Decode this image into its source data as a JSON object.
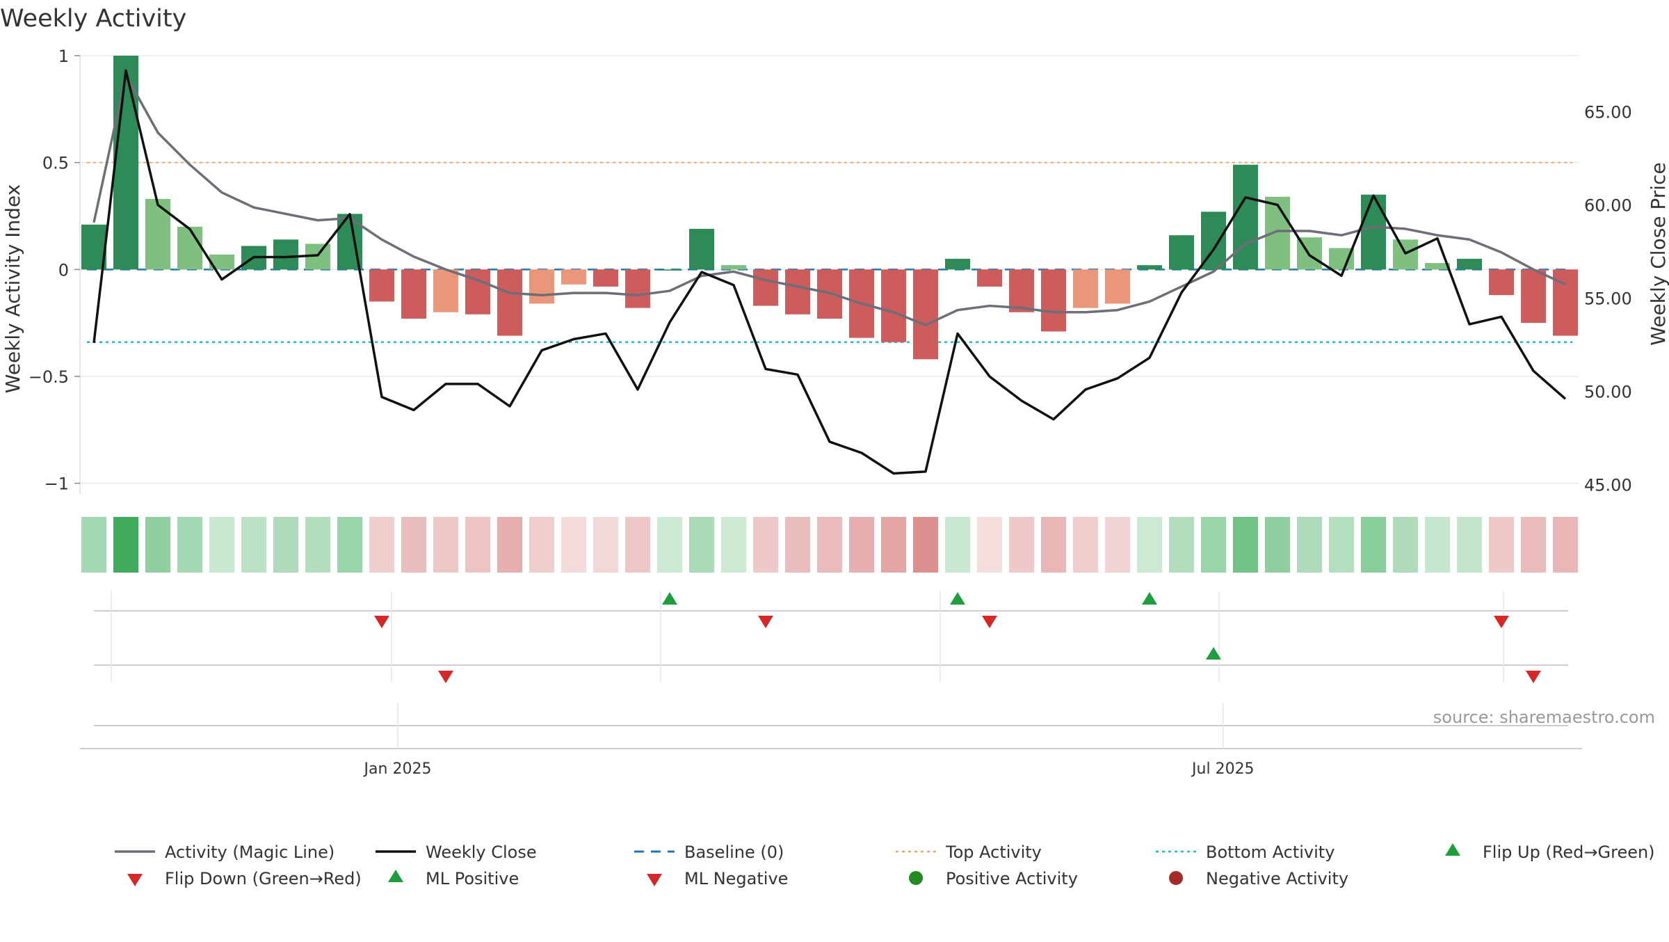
{
  "chart_data": {
    "type": "bar",
    "title": "Weekly Activity",
    "ylabel_left": "Weekly Activity Index",
    "ylabel_right": "Weekly Close Price",
    "ylim_left": [
      -1.05,
      1.0
    ],
    "ylim_right": [
      44.5,
      68.0
    ],
    "yticks_left": [
      {
        "value": 1,
        "label": "1"
      },
      {
        "value": 0.5,
        "label": "0.5"
      },
      {
        "value": 0,
        "label": "0"
      },
      {
        "value": -0.5,
        "label": "−0.5"
      },
      {
        "value": -1,
        "label": "−1"
      }
    ],
    "yticks_right": [
      {
        "value": 65,
        "label": "65.00"
      },
      {
        "value": 60,
        "label": "60.00"
      },
      {
        "value": 55,
        "label": "55.00"
      },
      {
        "value": 50,
        "label": "50.00"
      },
      {
        "value": 45,
        "label": "45.00"
      }
    ],
    "x_ticks": [
      {
        "index": 9.5,
        "label": "Jan 2025"
      },
      {
        "index": 35.3,
        "label": "Jul 2025"
      }
    ],
    "source": "source: sharemaestro.com",
    "top_activity": 0.5,
    "bottom_activity": -0.34,
    "baseline": 0,
    "activity": [
      0.21,
      1.0,
      0.33,
      0.2,
      0.07,
      0.11,
      0.14,
      0.12,
      0.26,
      -0.15,
      -0.23,
      -0.2,
      -0.21,
      -0.31,
      -0.16,
      -0.07,
      -0.08,
      -0.18,
      0.0,
      0.19,
      0.02,
      -0.17,
      -0.21,
      -0.23,
      -0.32,
      -0.34,
      -0.42,
      0.05,
      -0.08,
      -0.2,
      -0.29,
      -0.18,
      -0.16,
      0.02,
      0.16,
      0.27,
      0.49,
      0.34,
      0.15,
      0.1,
      0.35,
      0.14,
      0.03,
      0.05,
      -0.12,
      -0.25,
      -0.31
    ],
    "bar_color_type": [
      "dg",
      "dg",
      "lg",
      "lg",
      "lg",
      "dg",
      "dg",
      "lg",
      "dg",
      "r",
      "r",
      "s",
      "r",
      "r",
      "s",
      "s",
      "r",
      "r",
      "dg",
      "dg",
      "lg",
      "r",
      "r",
      "r",
      "r",
      "r",
      "r",
      "dg",
      "r",
      "r",
      "r",
      "s",
      "s",
      "dg",
      "dg",
      "dg",
      "dg",
      "lg",
      "lg",
      "lg",
      "dg",
      "lg",
      "lg",
      "dg",
      "r",
      "r",
      "r"
    ],
    "magic_line": [
      0.22,
      0.91,
      0.64,
      0.49,
      0.36,
      0.29,
      0.26,
      0.23,
      0.24,
      0.14,
      0.06,
      0.0,
      -0.05,
      -0.11,
      -0.12,
      -0.11,
      -0.11,
      -0.12,
      -0.1,
      -0.03,
      -0.01,
      -0.05,
      -0.08,
      -0.11,
      -0.16,
      -0.2,
      -0.26,
      -0.19,
      -0.17,
      -0.18,
      -0.2,
      -0.2,
      -0.19,
      -0.15,
      -0.08,
      -0.01,
      0.12,
      0.18,
      0.18,
      0.16,
      0.2,
      0.19,
      0.16,
      0.14,
      0.08,
      0.0,
      -0.07
    ],
    "weekly_close": [
      52.6,
      67.2,
      60.0,
      58.7,
      56.0,
      57.2,
      57.2,
      57.3,
      59.5,
      49.7,
      49.0,
      50.4,
      50.4,
      49.2,
      52.2,
      52.8,
      53.1,
      50.1,
      53.7,
      56.4,
      55.7,
      51.2,
      50.9,
      47.3,
      46.7,
      45.6,
      45.7,
      53.1,
      50.8,
      49.5,
      48.5,
      50.1,
      50.7,
      51.8,
      55.3,
      57.6,
      60.4,
      60.0,
      57.3,
      56.2,
      60.5,
      57.4,
      58.2,
      53.6,
      54.0,
      51.1,
      49.6
    ],
    "strip_intensity": [
      0.45,
      0.95,
      0.55,
      0.45,
      0.27,
      0.33,
      0.4,
      0.38,
      0.5,
      0.3,
      0.4,
      0.35,
      0.37,
      0.5,
      0.3,
      0.22,
      0.24,
      0.35,
      0.25,
      0.42,
      0.25,
      0.33,
      0.4,
      0.42,
      0.5,
      0.55,
      0.68,
      0.27,
      0.2,
      0.33,
      0.45,
      0.3,
      0.27,
      0.25,
      0.38,
      0.5,
      0.7,
      0.55,
      0.4,
      0.37,
      0.58,
      0.4,
      0.28,
      0.3,
      0.33,
      0.42,
      0.45
    ],
    "flip_up": [
      18,
      27,
      33
    ],
    "flip_down": [
      9,
      21,
      28,
      44
    ],
    "ml_positive": [
      35
    ],
    "ml_negative": [
      11,
      45
    ],
    "legend": [
      {
        "label": "Activity (Magic Line)",
        "symbol": "line-gray"
      },
      {
        "label": "Weekly Close",
        "symbol": "line-black"
      },
      {
        "label": "Baseline (0)",
        "symbol": "dash-blue"
      },
      {
        "label": "Top Activity",
        "symbol": "dot-orange"
      },
      {
        "label": "Bottom Activity",
        "symbol": "dot-cyan"
      },
      {
        "label": "Flip Up (Red→Green)",
        "symbol": "triangle-up-green"
      },
      {
        "label": "Flip Down (Green→Red)",
        "symbol": "triangle-down-red"
      },
      {
        "label": "ML Positive",
        "symbol": "triangle-up-green"
      },
      {
        "label": "ML Negative",
        "symbol": "triangle-down-red"
      },
      {
        "label": "Positive Activity",
        "symbol": "circle-green"
      },
      {
        "label": "Negative Activity",
        "symbol": "circle-red"
      }
    ],
    "colors": {
      "dark_green": "#2e8b57",
      "light_green": "#7fbf7f",
      "red": "#cd5c5c",
      "salmon": "#e9967a",
      "magic_line": "#6e6e78",
      "close": "#111111",
      "baseline": "#1f77b4",
      "top_activity": "#f4a460",
      "bottom_activity": "#17becf",
      "marker_green": "#1e9e3e",
      "marker_red": "#d62728",
      "positive_dot": "#228b22",
      "negative_dot": "#a52a2a",
      "grid": "#e8e8e8",
      "strip_green": "#34a853",
      "strip_red": "#cd5c5c"
    }
  }
}
